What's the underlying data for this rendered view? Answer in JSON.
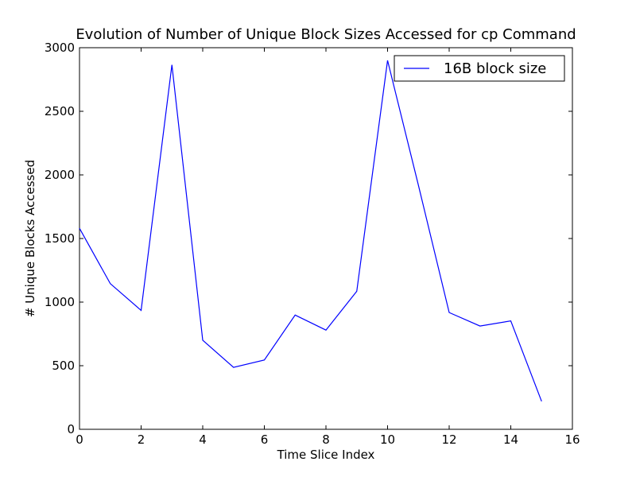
{
  "chart_data": {
    "type": "line",
    "title": "Evolution of Number of Unique Block Sizes Accessed for cp Command",
    "xlabel": "Time Slice Index",
    "ylabel": "# Unique Blocks Accessed",
    "xlim": [
      0,
      16
    ],
    "ylim": [
      0,
      3000
    ],
    "xticks": [
      "0",
      "2",
      "4",
      "6",
      "8",
      "10",
      "12",
      "14",
      "16"
    ],
    "yticks": [
      "0",
      "500",
      "1000",
      "1500",
      "2000",
      "2500",
      "3000"
    ],
    "grid": false,
    "legend_position": "top-right",
    "series": [
      {
        "name": "16B block size",
        "color": "#0000ff",
        "x": [
          0,
          1,
          2,
          3,
          4,
          5,
          6,
          7,
          8,
          9,
          10,
          11,
          12,
          13,
          14,
          15
        ],
        "values": [
          1580,
          1145,
          935,
          2865,
          700,
          487,
          545,
          898,
          780,
          1085,
          2900,
          1920,
          918,
          812,
          852,
          220
        ]
      }
    ]
  }
}
